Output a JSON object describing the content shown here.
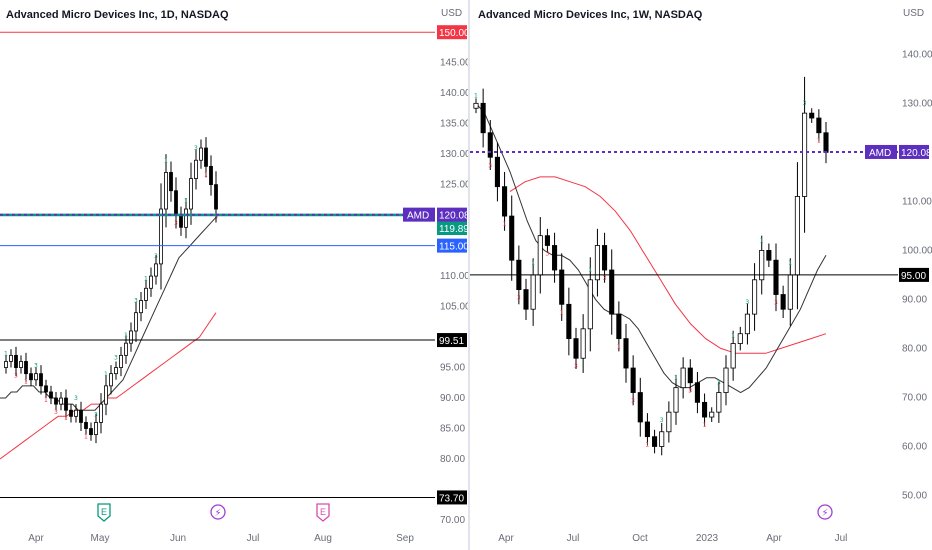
{
  "colors": {
    "up_candle": "#ffffff",
    "down_candle": "#000000",
    "candle_border": "#000000",
    "ma_fast": "#333333",
    "ma_slow": "#f23645",
    "price_line": "#5d2fbf",
    "red_level": "#f23645",
    "blue_level": "#2962ff",
    "green_level": "#089981",
    "black_level": "#000000",
    "seq_green": "#089981",
    "seq_red": "#f23645",
    "event_icon": "#a33fcf",
    "earnings_icon": "#089981"
  },
  "left_pane": {
    "title": "Advanced Micro Devices Inc, 1D, NASDAQ",
    "currency": "USD",
    "price_axis": [
      "145.00",
      "140.00",
      "135.00",
      "130.00",
      "125.00",
      "110.00",
      "105.00",
      "95.00",
      "90.00",
      "85.00",
      "80.00",
      "70.00"
    ],
    "time_axis": [
      "Apr",
      "May",
      "Jun",
      "Jul",
      "Aug",
      "Sep"
    ],
    "level_labels": {
      "red": "150.00",
      "symbol": "AMD",
      "price": "120.08",
      "green": "119.89",
      "blue": "115.00",
      "black_upper": "99.51",
      "black_lower": "73.70"
    },
    "event_icons": [
      "earnings-icon",
      "lightning-icon",
      "earnings-icon-pink"
    ]
  },
  "right_pane": {
    "title": "Advanced Micro Devices Inc, 1W, NASDAQ",
    "currency": "USD",
    "price_axis": [
      "140.00",
      "130.00",
      "110.00",
      "100.00",
      "90.00",
      "80.00",
      "70.00",
      "60.00",
      "50.00"
    ],
    "time_axis": [
      "Apr",
      "Jul",
      "Oct",
      "2023",
      "Apr",
      "Jul"
    ],
    "level_labels": {
      "symbol": "AMD",
      "price": "120.08",
      "black": "95.00"
    },
    "event_icons": [
      "lightning-icon"
    ]
  },
  "chart_data": [
    {
      "type": "candlestick",
      "title": "Advanced Micro Devices Inc, 1D, NASDAQ",
      "interval": "1D",
      "ylim": [
        70,
        152
      ],
      "x_labels": [
        "Apr",
        "May",
        "Jun",
        "Jul",
        "Aug",
        "Sep"
      ],
      "horizontal_levels": [
        150.0,
        120.08,
        119.89,
        115.0,
        99.51,
        73.7
      ],
      "last_price": 120.08,
      "close_series": [
        96,
        97,
        95,
        96,
        94,
        93,
        94,
        92,
        91,
        90,
        89,
        90,
        88,
        87,
        88,
        86,
        85,
        84,
        86,
        89,
        92,
        94,
        95,
        97,
        99,
        101,
        104,
        106,
        108,
        110,
        112,
        121,
        127,
        124,
        120,
        118,
        121,
        126,
        129,
        131,
        128,
        125,
        121
      ],
      "ma_fast": [
        90,
        90,
        91,
        91,
        92,
        92,
        92,
        91,
        91,
        90,
        90,
        89,
        89,
        89,
        88,
        88,
        88,
        88,
        89,
        90,
        91,
        92,
        93,
        95,
        97,
        99,
        101,
        103,
        105,
        107,
        109,
        111,
        113,
        114,
        115,
        116,
        117,
        118,
        119,
        120
      ],
      "ma_slow": [
        80,
        81,
        82,
        83,
        84,
        85,
        86,
        87,
        87,
        88,
        88,
        89,
        89,
        90,
        90,
        91,
        92,
        93,
        94,
        95,
        96,
        97,
        98,
        99,
        100,
        102,
        104
      ]
    },
    {
      "type": "candlestick",
      "title": "Advanced Micro Devices Inc, 1W, NASDAQ",
      "interval": "1W",
      "ylim": [
        45,
        147
      ],
      "x_labels": [
        "Apr",
        "Jul",
        "Oct",
        "2023",
        "Apr",
        "Jul"
      ],
      "horizontal_levels": [
        120.08,
        95.0
      ],
      "last_price": 120.08,
      "close_series": [
        130,
        124,
        119,
        113,
        107,
        98,
        92,
        88,
        95,
        103,
        101,
        96,
        89,
        82,
        78,
        84,
        94,
        101,
        96,
        87,
        82,
        76,
        71,
        65,
        62,
        60,
        63,
        67,
        72,
        76,
        73,
        69,
        66,
        67,
        71,
        76,
        81,
        83,
        87,
        94,
        100,
        98,
        91,
        88,
        95,
        111,
        128,
        127,
        124,
        120
      ],
      "ma_fast": [
        130,
        128,
        124,
        120,
        116,
        111,
        106,
        102,
        100,
        99,
        99,
        98,
        96,
        93,
        90,
        88,
        87,
        87,
        86,
        84,
        81,
        78,
        75,
        73,
        72,
        72,
        73,
        74,
        74,
        73,
        72,
        71,
        72,
        74,
        76,
        79,
        82,
        85,
        88,
        92,
        96,
        99
      ],
      "ma_slow": [
        112,
        114,
        115,
        115,
        114,
        113,
        111,
        108,
        104,
        99,
        94,
        89,
        85,
        82,
        80,
        79,
        79,
        79,
        80,
        81,
        82,
        83
      ]
    }
  ]
}
